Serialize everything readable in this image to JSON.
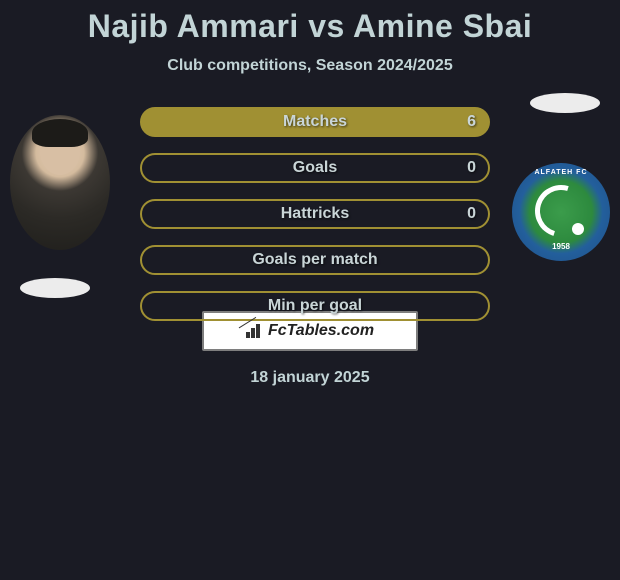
{
  "title": "Najib Ammari vs Amine Sbai",
  "subtitle": "Club competitions, Season 2024/2025",
  "left_player": {
    "name": "Najib Ammari",
    "country_flag_shape": "ellipse",
    "country_flag_color": "#ececec"
  },
  "right_player": {
    "name": "Amine Sbai",
    "country_flag_shape": "ellipse",
    "country_flag_color": "#ececec",
    "club_badge_text_top": "ALFATEH FC",
    "club_badge_year": "1958",
    "club_badge_outer_color": "#1e4e86",
    "club_badge_inner_color": "#3b9c4b"
  },
  "stats": [
    {
      "label": "Matches",
      "right_value": "6",
      "filled": true
    },
    {
      "label": "Goals",
      "right_value": "0",
      "filled": false
    },
    {
      "label": "Hattricks",
      "right_value": "0",
      "filled": false
    },
    {
      "label": "Goals per match",
      "right_value": "",
      "filled": false
    },
    {
      "label": "Min per goal",
      "right_value": "",
      "filled": false
    }
  ],
  "colors": {
    "background": "#1a1b24",
    "pill_border": "#a09033",
    "pill_fill": "#a09033",
    "text": "#c2d4d6"
  },
  "footer": {
    "brand": "FcTables.com",
    "date": "18 january 2025",
    "badge_border": "#7e7e7e",
    "badge_bg": "#ffffff"
  }
}
